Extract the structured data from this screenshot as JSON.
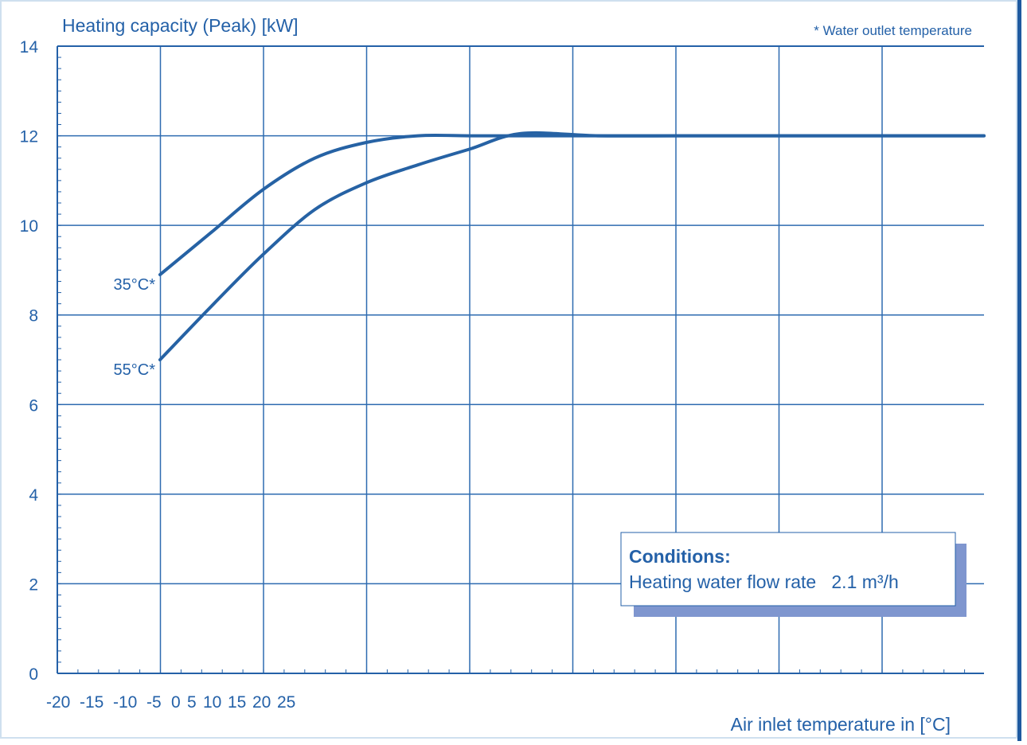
{
  "colors": {
    "axis": "#2461a8",
    "grid": "#2e6bb0",
    "text": "#2461a8",
    "line": "#2662a4",
    "frame": "#cfe0ef",
    "right_border": "#1f5aa0",
    "legend_shadow": "#7f96cf",
    "legend_border": "#2461a8"
  },
  "chart_data": {
    "type": "line",
    "title": "",
    "ylabel": "Heating capacity (Peak) [kW]",
    "xlabel": "Air inlet temperature in [°C]",
    "note": "* Water outlet temperature",
    "y_ticks": [
      "0",
      "2",
      "4",
      "6",
      "8",
      "10",
      "12",
      "14"
    ],
    "ylim": [
      0,
      14
    ],
    "x_tick_labels": [
      "-20",
      "-15",
      "-10",
      "-5",
      "0",
      "5",
      "10",
      "15",
      "20",
      "25"
    ],
    "xlim": [
      -20,
      25
    ],
    "grid": true,
    "series": [
      {
        "name": "35°C*",
        "x": [
          -20,
          -17.5,
          -15,
          -12.5,
          -10,
          -7.5,
          -5,
          -2.5,
          0,
          5,
          10,
          15,
          20,
          25
        ],
        "y": [
          8.9,
          9.85,
          10.8,
          11.5,
          11.85,
          12.0,
          12.0,
          12.0,
          12.0,
          12.0,
          12.0,
          12.0,
          12.0,
          12.0
        ]
      },
      {
        "name": "55°C*",
        "x": [
          -20,
          -17.5,
          -15,
          -12.5,
          -10,
          -7.5,
          -5,
          -2.5,
          0,
          5,
          10,
          15,
          20,
          25
        ],
        "y": [
          7.0,
          8.2,
          9.35,
          10.35,
          10.95,
          11.35,
          11.7,
          12.05,
          12.0,
          12.0,
          12.0,
          12.0,
          12.0,
          12.0
        ]
      }
    ]
  },
  "legend": {
    "title": "Conditions:",
    "text": "Heating water flow rate   2.1 m³/h"
  }
}
